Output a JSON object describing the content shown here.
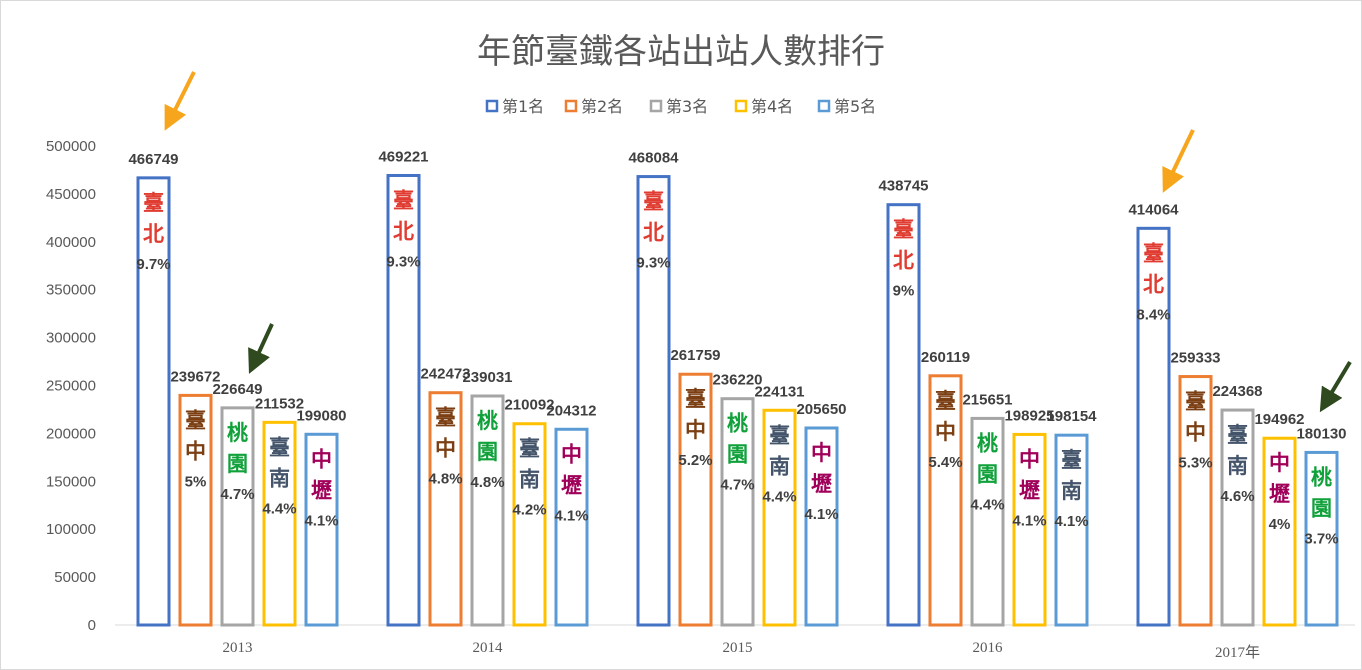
{
  "chart_data": {
    "type": "bar",
    "title": "年節臺鐵各站出站人數排行",
    "categories": [
      "2013",
      "2014",
      "2015",
      "2016",
      "2017年"
    ],
    "ylim": [
      0,
      500000
    ],
    "yticks": [
      "0",
      "50000",
      "100000",
      "150000",
      "200000",
      "250000",
      "300000",
      "350000",
      "400000",
      "450000",
      "500000"
    ],
    "legend_position": "top",
    "grid": false,
    "series": [
      {
        "name": "第1名",
        "color": "#4472C4",
        "values": [
          466749,
          469221,
          468084,
          438745,
          414064
        ],
        "value_labels": [
          "466749",
          "469221",
          "468084",
          "438745",
          "414064"
        ],
        "stations": [
          "臺北",
          "臺北",
          "臺北",
          "臺北",
          "臺北"
        ],
        "shares": [
          "9.7%",
          "9.3%",
          "9.3%",
          "9%",
          "8.4%"
        ]
      },
      {
        "name": "第2名",
        "color": "#ED7D31",
        "values": [
          239672,
          242473,
          261759,
          260119,
          259333
        ],
        "value_labels": [
          "239672",
          "242473",
          "261759",
          "260119",
          "259333"
        ],
        "stations": [
          "臺中",
          "臺中",
          "臺中",
          "臺中",
          "臺中"
        ],
        "shares": [
          "5%",
          "4.8%",
          "5.2%",
          "5.4%",
          "5.3%"
        ]
      },
      {
        "name": "第3名",
        "color": "#A5A5A5",
        "values": [
          226649,
          239031,
          236220,
          215651,
          224368
        ],
        "value_labels": [
          "226649",
          "239031",
          "236220",
          "215651",
          "224368"
        ],
        "stations": [
          "桃園",
          "桃園",
          "桃園",
          "桃園",
          "臺南"
        ],
        "shares": [
          "4.7%",
          "4.8%",
          "4.7%",
          "4.4%",
          "4.6%"
        ]
      },
      {
        "name": "第4名",
        "color": "#FFC000",
        "values": [
          211532,
          210092,
          224131,
          198925,
          194962
        ],
        "value_labels": [
          "211532",
          "210092",
          "224131",
          "198925",
          "194962"
        ],
        "stations": [
          "臺南",
          "臺南",
          "臺南",
          "中壢",
          "中壢"
        ],
        "shares": [
          "4.4%",
          "4.2%",
          "4.4%",
          "4.1%",
          "4%"
        ]
      },
      {
        "name": "第5名",
        "color": "#5B9BD5",
        "values": [
          199080,
          204312,
          205650,
          198154,
          180130
        ],
        "value_labels": [
          "199080",
          "204312",
          "205650",
          "198154",
          "180130"
        ],
        "stations": [
          "中壢",
          "中壢",
          "中壢",
          "臺南",
          "桃園"
        ],
        "shares": [
          "4.1%",
          "4.1%",
          "4.1%",
          "4.1%",
          "3.7%"
        ]
      }
    ],
    "station_colors": {
      "臺北": "#E03C31",
      "臺中": "#7B3F13",
      "桃園": "#10A13A",
      "臺南": "#44546A",
      "中壢": "#A0005A"
    },
    "annotations": [
      {
        "type": "arrow",
        "color": "#F7A51C",
        "points_to": "2013 第1名"
      },
      {
        "type": "arrow",
        "color": "#2E4A1E",
        "points_to": "2013 第3名"
      },
      {
        "type": "arrow",
        "color": "#F7A51C",
        "points_to": "2017年 第1名"
      },
      {
        "type": "arrow",
        "color": "#2E4A1E",
        "points_to": "2017年 第5名"
      }
    ]
  }
}
